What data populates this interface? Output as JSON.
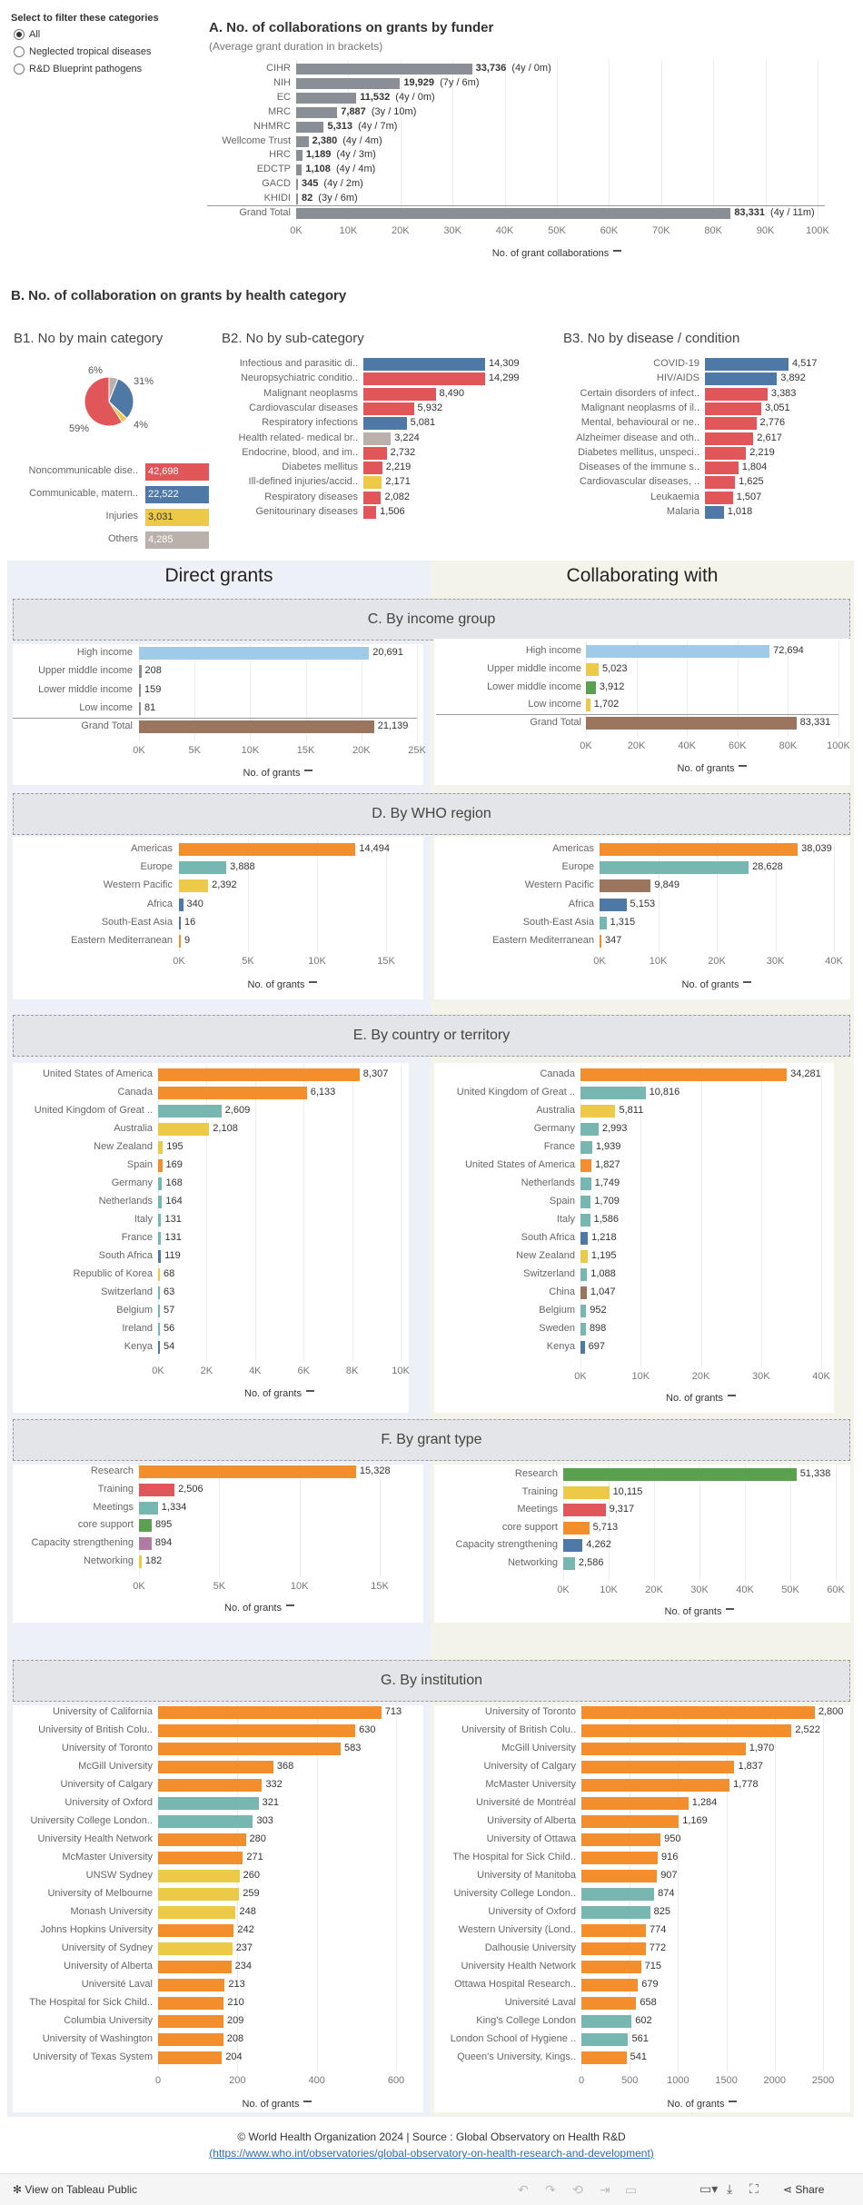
{
  "filter": {
    "title": "Select to filter these categories",
    "options": [
      "All",
      "Neglected tropical diseases",
      "R&D Blueprint pathogens"
    ],
    "selected": 0
  },
  "colors": {
    "grey": "#8a8f96",
    "blue": "#4e79a7",
    "red": "#e15759",
    "yellow": "#edc948",
    "taupe": "#bab0ac",
    "lightblue": "#a0cbe8",
    "brown": "#9c755f",
    "orange": "#f28e2b",
    "teal": "#76b7b2",
    "green": "#59a14f",
    "purple": "#b07aa1"
  },
  "sectionA": {
    "title": "A. No. of collaborations on grants by funder",
    "subtitle": "(Average grant duration in brackets)",
    "xlabel": "No. of grant collaborations",
    "rows": [
      [
        "CIHR",
        "33,736",
        "(4y / 0m)"
      ],
      [
        "NIH",
        "19,929",
        "(7y / 6m)"
      ],
      [
        "EC",
        "11,532",
        "(4y / 0m)"
      ],
      [
        "MRC",
        "7,887",
        "(3y / 10m)"
      ],
      [
        "NHMRC",
        "5,313",
        "(4y / 7m)"
      ],
      [
        "Wellcome Trust",
        "2,380",
        "(4y / 4m)"
      ],
      [
        "HRC",
        "1,189",
        "(4y / 3m)"
      ],
      [
        "EDCTP",
        "1,108",
        "(4y / 4m)"
      ],
      [
        "GACD",
        "345",
        "(4y / 2m)"
      ],
      [
        "KHIDI",
        "82",
        "(3y / 6m)"
      ],
      [
        "Grand Total",
        "83,331",
        "(4y / 11m)"
      ]
    ],
    "ticks": [
      "0K",
      "10K",
      "20K",
      "30K",
      "40K",
      "50K",
      "60K",
      "70K",
      "80K",
      "90K",
      "100K"
    ]
  },
  "sectionB": {
    "title": "B. No. of collaboration on grants by health category",
    "b1": "B1. No by main category",
    "b2": "B2. No by sub-category",
    "b3": "B3. No by disease / condition",
    "pie": {
      "labels": [
        "6%",
        "31%",
        "4%",
        "59%"
      ]
    },
    "main": [
      [
        "Noncommunicable dise..",
        "42,698"
      ],
      [
        "Communicable, matern..",
        "22,522"
      ],
      [
        "Injuries",
        "3,031"
      ],
      [
        "Others",
        "4,285"
      ]
    ],
    "sub": [
      [
        "Infectious and parasitic di..",
        "14,309"
      ],
      [
        "Neuropsychiatric conditio..",
        "14,299"
      ],
      [
        "Malignant neoplasms",
        "8,490"
      ],
      [
        "Cardiovascular diseases",
        "5,932"
      ],
      [
        "Respiratory infections",
        "5,081"
      ],
      [
        "Health related- medical br..",
        "3,224"
      ],
      [
        "Endocrine, blood, and im..",
        "2,732"
      ],
      [
        "Diabetes mellitus",
        "2,219"
      ],
      [
        "Ill-defined injuries/accid..",
        "2,171"
      ],
      [
        "Respiratory diseases",
        "2,082"
      ],
      [
        "Genitourinary diseases",
        "1,506"
      ]
    ],
    "disease": [
      [
        "COVID-19",
        "4,517"
      ],
      [
        "HIV/AIDS",
        "3,892"
      ],
      [
        "Certain disorders of infect..",
        "3,383"
      ],
      [
        "Malignant neoplasms of il..",
        "3,051"
      ],
      [
        "Mental, behavioural or ne..",
        "2,776"
      ],
      [
        "Alzheimer disease and oth..",
        "2,617"
      ],
      [
        "Diabetes mellitus, unspeci..",
        "2,219"
      ],
      [
        "Diseases of the immune s..",
        "1,804"
      ],
      [
        "Cardiovascular diseases, ..",
        "1,625"
      ],
      [
        "Leukaemia",
        "1,507"
      ],
      [
        "Malaria",
        "1,018"
      ]
    ]
  },
  "headers": {
    "direct": "Direct grants",
    "collab": "Collaborating with"
  },
  "sectionC": {
    "title": "C. By income group",
    "xlabel": "No. of grants",
    "left": [
      [
        "High income",
        "20,691"
      ],
      [
        "Upper middle income",
        "208"
      ],
      [
        "Lower middle income",
        "159"
      ],
      [
        "Low income",
        "81"
      ],
      [
        "Grand Total",
        "21,139"
      ]
    ],
    "right": [
      [
        "High income",
        "72,694"
      ],
      [
        "Upper middle income",
        "5,023"
      ],
      [
        "Lower middle income",
        "3,912"
      ],
      [
        "Low income",
        "1,702"
      ],
      [
        "Grand Total",
        "83,331"
      ]
    ],
    "lticks": [
      "0K",
      "5K",
      "10K",
      "15K",
      "20K",
      "25K"
    ],
    "rticks": [
      "0K",
      "20K",
      "40K",
      "60K",
      "80K",
      "100K"
    ]
  },
  "sectionD": {
    "title": "D. By WHO region",
    "xlabel": "No. of grants",
    "left": [
      [
        "Americas",
        "14,494"
      ],
      [
        "Europe",
        "3,888"
      ],
      [
        "Western Pacific",
        "2,392"
      ],
      [
        "Africa",
        "340"
      ],
      [
        "South-East Asia",
        "16"
      ],
      [
        "Eastern Mediterranean",
        "9"
      ]
    ],
    "right": [
      [
        "Americas",
        "38,039"
      ],
      [
        "Europe",
        "28,628"
      ],
      [
        "Western Pacific",
        "9,849"
      ],
      [
        "Africa",
        "5,153"
      ],
      [
        "South-East Asia",
        "1,315"
      ],
      [
        "Eastern Mediterranean",
        "347"
      ]
    ],
    "lticks": [
      "0K",
      "5K",
      "10K",
      "15K"
    ],
    "rticks": [
      "0K",
      "10K",
      "20K",
      "30K",
      "40K"
    ]
  },
  "sectionE": {
    "title": "E. By country or territory",
    "xlabel": "No. of grants",
    "left": [
      [
        "United States of America",
        "8,307"
      ],
      [
        "Canada",
        "6,133"
      ],
      [
        "United Kingdom of Great ..",
        "2,609"
      ],
      [
        "Australia",
        "2,108"
      ],
      [
        "New Zealand",
        "195"
      ],
      [
        "Spain",
        "169"
      ],
      [
        "Germany",
        "168"
      ],
      [
        "Netherlands",
        "164"
      ],
      [
        "Italy",
        "131"
      ],
      [
        "France",
        "131"
      ],
      [
        "South Africa",
        "119"
      ],
      [
        "Republic of Korea",
        "68"
      ],
      [
        "Switzerland",
        "63"
      ],
      [
        "Belgium",
        "57"
      ],
      [
        "Ireland",
        "56"
      ],
      [
        "Kenya",
        "54"
      ]
    ],
    "right": [
      [
        "Canada",
        "34,281"
      ],
      [
        "United Kingdom of Great ..",
        "10,816"
      ],
      [
        "Australia",
        "5,811"
      ],
      [
        "Germany",
        "2,993"
      ],
      [
        "France",
        "1,939"
      ],
      [
        "United States of America",
        "1,827"
      ],
      [
        "Netherlands",
        "1,749"
      ],
      [
        "Spain",
        "1,709"
      ],
      [
        "Italy",
        "1,586"
      ],
      [
        "South Africa",
        "1,218"
      ],
      [
        "New Zealand",
        "1,195"
      ],
      [
        "Switzerland",
        "1,088"
      ],
      [
        "China",
        "1,047"
      ],
      [
        "Belgium",
        "952"
      ],
      [
        "Sweden",
        "898"
      ],
      [
        "Kenya",
        "697"
      ]
    ],
    "lticks": [
      "0K",
      "2K",
      "4K",
      "6K",
      "8K",
      "10K"
    ],
    "rticks": [
      "0K",
      "10K",
      "20K",
      "30K",
      "40K"
    ]
  },
  "sectionF": {
    "title": "F. By grant type",
    "xlabel": "No. of grants",
    "left": [
      [
        "Research",
        "15,328"
      ],
      [
        "Training",
        "2,506"
      ],
      [
        "Meetings",
        "1,334"
      ],
      [
        "core support",
        "895"
      ],
      [
        "Capacity strengthening",
        "894"
      ],
      [
        "Networking",
        "182"
      ]
    ],
    "right": [
      [
        "Research",
        "51,338"
      ],
      [
        "Training",
        "10,115"
      ],
      [
        "Meetings",
        "9,317"
      ],
      [
        "core support",
        "5,713"
      ],
      [
        "Capacity strengthening",
        "4,262"
      ],
      [
        "Networking",
        "2,586"
      ]
    ],
    "lticks": [
      "0K",
      "5K",
      "10K",
      "15K"
    ],
    "rticks": [
      "0K",
      "10K",
      "20K",
      "30K",
      "40K",
      "50K",
      "60K"
    ]
  },
  "sectionG": {
    "title": "G. By institution",
    "xlabel": "No. of grants",
    "left": [
      [
        "University of California",
        "713"
      ],
      [
        "University of British Colu..",
        "630"
      ],
      [
        "University of Toronto",
        "583"
      ],
      [
        "McGill University",
        "368"
      ],
      [
        "University of Calgary",
        "332"
      ],
      [
        "University of Oxford",
        "321"
      ],
      [
        "University College London..",
        "303"
      ],
      [
        "University Health Network",
        "280"
      ],
      [
        "McMaster University",
        "271"
      ],
      [
        "UNSW Sydney",
        "260"
      ],
      [
        "University of Melbourne",
        "259"
      ],
      [
        "Monash University",
        "248"
      ],
      [
        "Johns Hopkins University",
        "242"
      ],
      [
        "University of Sydney",
        "237"
      ],
      [
        "University of Alberta",
        "234"
      ],
      [
        "Université Laval",
        "213"
      ],
      [
        "The Hospital for Sick Child..",
        "210"
      ],
      [
        "Columbia University",
        "209"
      ],
      [
        "University of Washington",
        "208"
      ],
      [
        "University of Texas System",
        "204"
      ]
    ],
    "right": [
      [
        "University of Toronto",
        "2,800"
      ],
      [
        "University of British Colu..",
        "2,522"
      ],
      [
        "McGill University",
        "1,970"
      ],
      [
        "University of Calgary",
        "1,837"
      ],
      [
        "McMaster University",
        "1,778"
      ],
      [
        "Université de Montréal",
        "1,284"
      ],
      [
        "University of Alberta",
        "1,169"
      ],
      [
        "University of Ottawa",
        "950"
      ],
      [
        "The Hospital for Sick Child..",
        "916"
      ],
      [
        "University of Manitoba",
        "907"
      ],
      [
        "University College London..",
        "874"
      ],
      [
        "University of Oxford",
        "825"
      ],
      [
        "Western University (Lond..",
        "774"
      ],
      [
        "Dalhousie University",
        "772"
      ],
      [
        "University Health Network",
        "715"
      ],
      [
        "Ottawa Hospital Research..",
        "679"
      ],
      [
        "Université Laval",
        "658"
      ],
      [
        "King's College London",
        "602"
      ],
      [
        "London School of Hygiene ..",
        "561"
      ],
      [
        "Queen's University, Kings..",
        "541"
      ]
    ],
    "lticks": [
      "0",
      "200",
      "400",
      "600"
    ],
    "rticks": [
      "0",
      "500",
      "1000",
      "1500",
      "2000",
      "2500"
    ]
  },
  "footer": {
    "line1": "© World Health Organization 2024 | Source : Global Observatory on Health R&D",
    "link": "(https://www.who.int/observatories/global-observatory-on-health-research-and-development)"
  },
  "toolbar": {
    "view": "View on Tableau Public",
    "share": "Share"
  }
}
